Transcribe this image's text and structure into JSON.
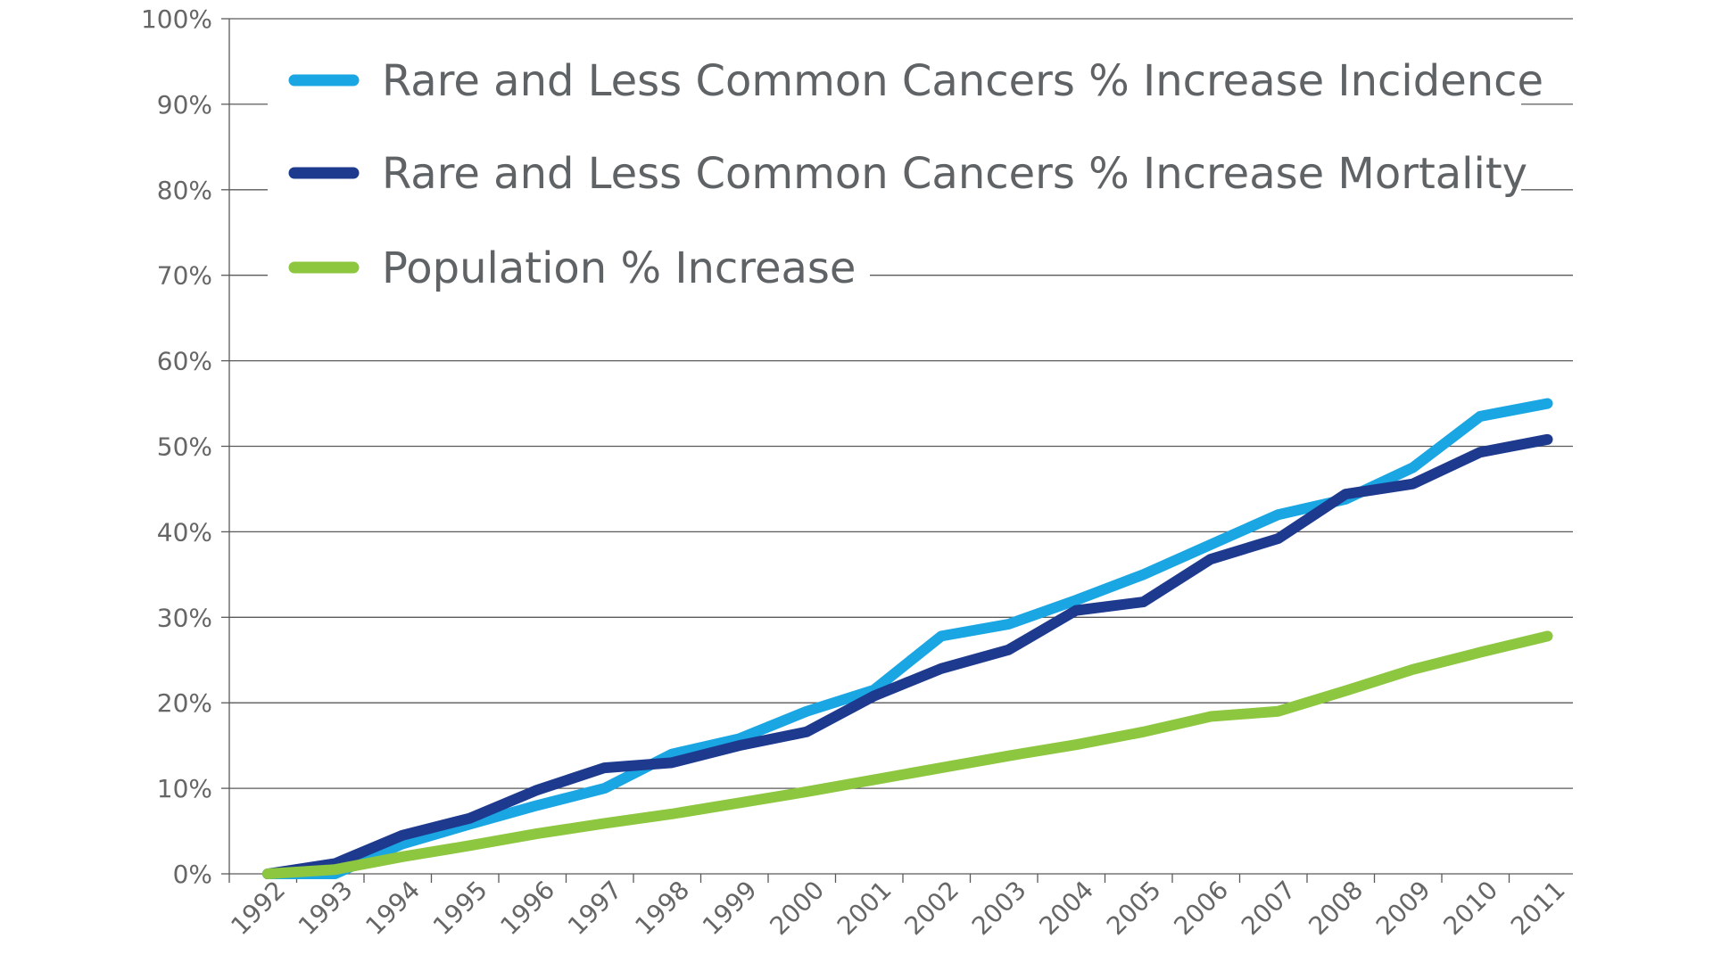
{
  "chart_data": {
    "type": "line",
    "title": "",
    "xlabel": "",
    "ylabel": "",
    "x": [
      "1992",
      "1993",
      "1994",
      "1995",
      "1996",
      "1997",
      "1998",
      "1999",
      "2000",
      "2001",
      "2002",
      "2003",
      "2004",
      "2005",
      "2006",
      "2007",
      "2008",
      "2009",
      "2010",
      "2011"
    ],
    "ylim": [
      0,
      100
    ],
    "yticks": [
      "0%",
      "10%",
      "20%",
      "30%",
      "40%",
      "50%",
      "60%",
      "70%",
      "80%",
      "90%",
      "100%"
    ],
    "grid": true,
    "legend_position": "top-left",
    "series": [
      {
        "name": "Rare and Less Common Cancers % Increase Incidence",
        "color": "#19a6e3",
        "values": [
          0,
          0,
          3.5,
          5.8,
          8.0,
          10.0,
          14.0,
          15.8,
          19.0,
          21.5,
          27.8,
          29.2,
          32.0,
          35.0,
          38.5,
          42.0,
          43.8,
          47.5,
          53.5,
          55.0
        ]
      },
      {
        "name": "Rare and Less Common Cancers % Increase Mortality",
        "color": "#1e3a8f",
        "values": [
          0,
          1.2,
          4.5,
          6.5,
          9.8,
          12.4,
          13.0,
          15.0,
          16.6,
          20.8,
          24.0,
          26.2,
          30.8,
          31.8,
          36.8,
          39.2,
          44.4,
          45.6,
          49.3,
          50.8
        ]
      },
      {
        "name": "Population % Increase",
        "color": "#8dc63f",
        "values": [
          0,
          0.5,
          2.0,
          3.3,
          4.7,
          5.9,
          7.0,
          8.3,
          9.6,
          11.0,
          12.4,
          13.8,
          15.1,
          16.6,
          18.4,
          19.0,
          21.4,
          23.9,
          25.9,
          27.8
        ]
      }
    ]
  }
}
